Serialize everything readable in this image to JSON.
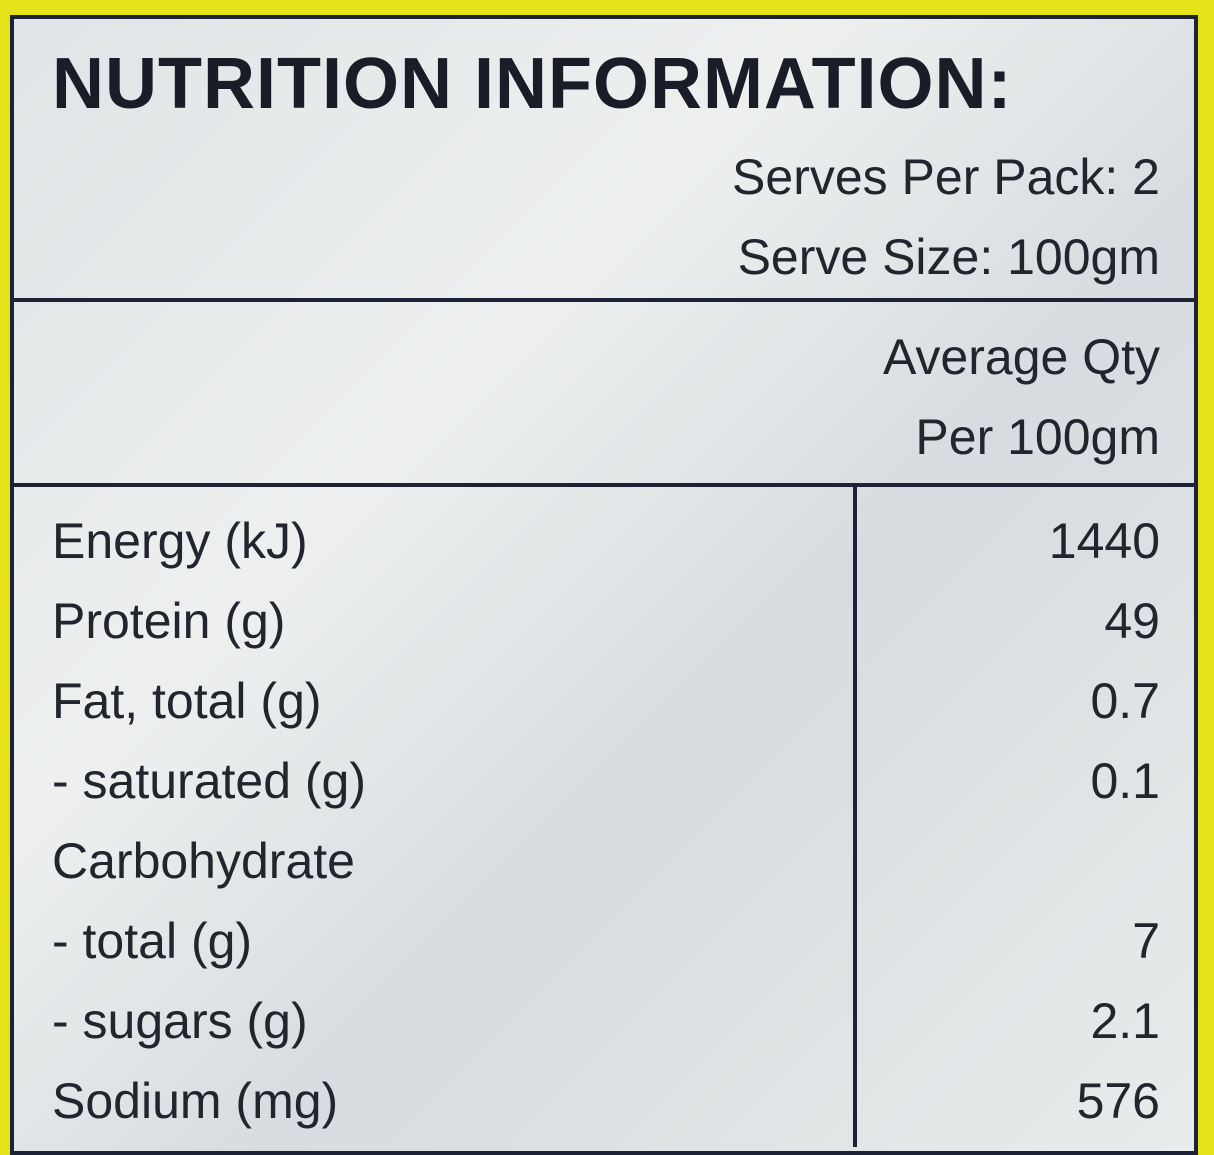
{
  "header": {
    "title": "NUTRITION INFORMATION:",
    "serves_per_pack": "Serves Per Pack: 2",
    "serve_size": "Serve Size: 100gm"
  },
  "column_header": {
    "line1": "Average Qty",
    "line2": "Per 100gm"
  },
  "table": {
    "rows": [
      {
        "label": "Energy (kJ)",
        "value": 1440
      },
      {
        "label": "Protein (g)",
        "value": 49
      },
      {
        "label": "Fat, total (g)",
        "value": 0.7
      },
      {
        "label": "- saturated (g)",
        "value": 0.1
      },
      {
        "label": "Carbohydrate"
      },
      {
        "label": "- total (g)",
        "value": 7
      },
      {
        "label": "- sugars (g)",
        "value": 2.1
      },
      {
        "label": "Sodium (mg)",
        "value": 576
      }
    ]
  }
}
